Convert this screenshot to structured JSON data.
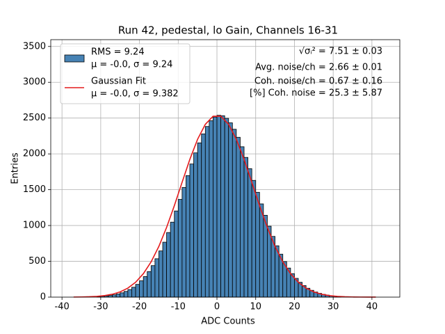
{
  "chart_data": {
    "type": "histogram",
    "title": "Run 42, pedestal, lo Gain, Channels 16-31",
    "xlabel": "ADC Counts",
    "ylabel": "Entries",
    "xlim": [
      -42.9,
      47.2
    ],
    "ylim": [
      0,
      3595
    ],
    "xticks": [
      -40,
      -30,
      -20,
      -10,
      0,
      10,
      20,
      30,
      40
    ],
    "yticks": [
      0,
      500,
      1000,
      1500,
      2000,
      2500,
      3000,
      3500
    ],
    "grid": true,
    "legend": "upper left",
    "bins": [
      -31,
      -30,
      -29,
      -28,
      -27,
      -26,
      -25,
      -24,
      -23,
      -22,
      -21,
      -20,
      -19,
      -18,
      -17,
      -16,
      -15,
      -14,
      -13,
      -12,
      -11,
      -10,
      -9,
      -8,
      -7,
      -6,
      -5,
      -4,
      -3,
      -2,
      -1,
      0,
      1,
      2,
      3,
      4,
      5,
      6,
      7,
      8,
      9,
      10,
      11,
      12,
      13,
      14,
      15,
      16,
      17,
      18,
      19,
      20,
      21,
      22,
      23,
      24,
      25,
      26,
      27,
      28,
      29,
      30,
      31,
      32
    ],
    "series": [
      {
        "name": "RMS = 9.24",
        "stats": "μ = -0.0, σ = 9.24",
        "color": "#4682b4",
        "edgecolor": "#000000",
        "values": [
          8,
          12,
          17,
          23,
          32,
          44,
          60,
          80,
          106,
          138,
          178,
          228,
          287,
          357,
          440,
          536,
          645,
          767,
          902,
          1047,
          1203,
          1365,
          1531,
          1697,
          1859,
          2014,
          2154,
          2279,
          2383,
          2463,
          2515,
          2539,
          2533,
          2497,
          2434,
          2344,
          2232,
          2100,
          1951,
          1794,
          1630,
          1464,
          1302,
          1143,
          990,
          848,
          717,
          600,
          497,
          406,
          328,
          262,
          207,
          162,
          124,
          95,
          71,
          53,
          39,
          28,
          20,
          14,
          10
        ]
      },
      {
        "name": "Gaussian Fit",
        "stats": "μ = -0.0, σ = 9.382",
        "color": "#e41a1c",
        "type": "line",
        "x": [
          -37,
          -35,
          -33,
          -31,
          -29,
          -27,
          -25,
          -23,
          -21,
          -19,
          -17,
          -15,
          -13,
          -11,
          -9,
          -7,
          -5,
          -3,
          -1,
          1,
          3,
          5,
          7,
          9,
          11,
          13,
          15,
          17,
          19,
          21,
          23,
          25,
          27,
          29,
          31,
          33,
          35,
          37,
          39,
          41
        ],
        "values": [
          1.1,
          2.4,
          5.2,
          10.8,
          21.4,
          40.4,
          73,
          126,
          207,
          327,
          492,
          708,
          973,
          1277,
          1603,
          1923,
          2204,
          2413,
          2526,
          2526,
          2413,
          2204,
          1923,
          1603,
          1277,
          973,
          708,
          492,
          327,
          207,
          126,
          73,
          40.4,
          21.4,
          10.8,
          5.2,
          2.4,
          1.1,
          0.5,
          0.2
        ]
      }
    ],
    "annotations": [
      "√σᵢ² = 7.51 ± 0.03",
      "Avg. noise/ch = 2.66 ± 0.01",
      "Coh. noise/ch = 0.67 ± 0.16",
      "[%] Coh. noise = 25.3 ± 5.87"
    ]
  }
}
